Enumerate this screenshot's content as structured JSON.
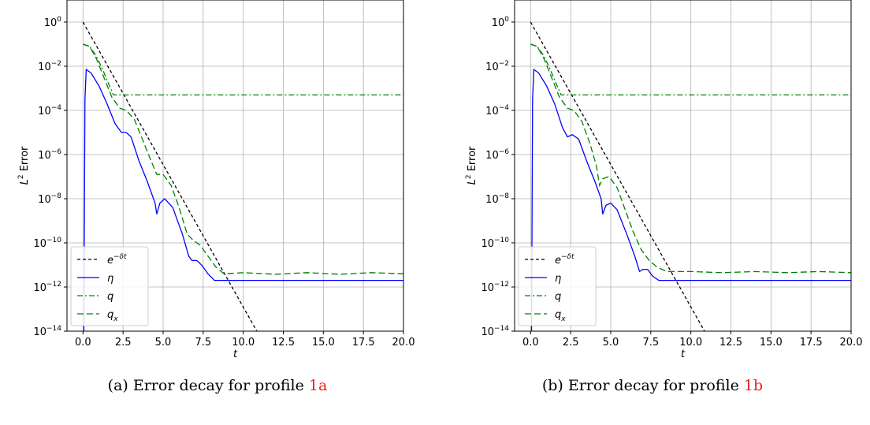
{
  "charts": [
    {
      "type": "line",
      "yscale": "log",
      "xlabel": "t",
      "ylabel_base": "L",
      "ylabel_sup": "2",
      "ylabel_rest": " Error",
      "xlim": [
        -1,
        20
      ],
      "ylim_exp": [
        -14,
        1
      ],
      "xticks": [
        "0.0",
        "2.5",
        "5.0",
        "7.5",
        "10.0",
        "12.5",
        "15.0",
        "17.5",
        "20.0"
      ],
      "xtick_values": [
        0,
        2.5,
        5,
        7.5,
        10,
        12.5,
        15,
        17.5,
        20
      ],
      "yticks": [
        {
          "base": "10",
          "exp": "0",
          "value": 0
        },
        {
          "base": "10",
          "exp": "−2",
          "value": -2
        },
        {
          "base": "10",
          "exp": "−4",
          "value": -4
        },
        {
          "base": "10",
          "exp": "−6",
          "value": -6
        },
        {
          "base": "10",
          "exp": "−8",
          "value": -8
        },
        {
          "base": "10",
          "exp": "−10",
          "value": -10
        },
        {
          "base": "10",
          "exp": "−12",
          "value": -12
        },
        {
          "base": "10",
          "exp": "−14",
          "value": -14
        }
      ],
      "grid": true,
      "legend_position": "lower-left",
      "series": [
        {
          "label_base": "e",
          "label_sup": "−δt",
          "color": "#000000",
          "dash": "4,3",
          "points": [
            [
              0,
              0
            ],
            [
              10.85,
              -14
            ]
          ]
        },
        {
          "label_base": "η",
          "label_sup": "",
          "color": "#0000ff",
          "dash": "",
          "points": [
            [
              0.05,
              -15
            ],
            [
              0.12,
              -3.5
            ],
            [
              0.2,
              -2.15
            ],
            [
              0.5,
              -2.3
            ],
            [
              1.0,
              -2.9
            ],
            [
              1.5,
              -3.7
            ],
            [
              2.0,
              -4.6
            ],
            [
              2.4,
              -5.0
            ],
            [
              2.7,
              -5.0
            ],
            [
              3.0,
              -5.2
            ],
            [
              3.5,
              -6.3
            ],
            [
              4.0,
              -7.2
            ],
            [
              4.5,
              -8.2
            ],
            [
              4.6,
              -8.7
            ],
            [
              4.8,
              -8.2
            ],
            [
              5.1,
              -8.0
            ],
            [
              5.6,
              -8.4
            ],
            [
              6.2,
              -9.6
            ],
            [
              6.6,
              -10.6
            ],
            [
              6.8,
              -10.8
            ],
            [
              7.1,
              -10.8
            ],
            [
              7.4,
              -11.0
            ],
            [
              7.8,
              -11.4
            ],
            [
              8.2,
              -11.7
            ],
            [
              9.0,
              -11.7
            ],
            [
              20,
              -11.7
            ]
          ]
        },
        {
          "label_base": "q",
          "label_sup": "",
          "color": "#008000",
          "dash": "7,3,2,3",
          "points": [
            [
              0,
              -1.0
            ],
            [
              0.4,
              -1.1
            ],
            [
              0.8,
              -1.5
            ],
            [
              1.2,
              -2.1
            ],
            [
              1.6,
              -2.8
            ],
            [
              1.9,
              -3.3
            ],
            [
              20,
              -3.3
            ]
          ]
        },
        {
          "label_base": "q",
          "label_sub": "x",
          "color": "#008000",
          "dash": "8,4",
          "points": [
            [
              0,
              -1.0
            ],
            [
              0.4,
              -1.1
            ],
            [
              0.8,
              -1.6
            ],
            [
              1.3,
              -2.5
            ],
            [
              1.8,
              -3.4
            ],
            [
              2.3,
              -3.9
            ],
            [
              2.7,
              -4.0
            ],
            [
              3.2,
              -4.4
            ],
            [
              3.7,
              -5.3
            ],
            [
              4.2,
              -6.2
            ],
            [
              4.6,
              -6.9
            ],
            [
              5.0,
              -6.9
            ],
            [
              5.5,
              -7.4
            ],
            [
              6.0,
              -8.4
            ],
            [
              6.5,
              -9.6
            ],
            [
              6.9,
              -9.9
            ],
            [
              7.3,
              -10.1
            ],
            [
              7.8,
              -10.6
            ],
            [
              8.3,
              -11.1
            ],
            [
              8.8,
              -11.4
            ],
            [
              10,
              -11.35
            ],
            [
              12,
              -11.42
            ],
            [
              14,
              -11.35
            ],
            [
              16,
              -11.42
            ],
            [
              18,
              -11.35
            ],
            [
              20,
              -11.4
            ]
          ]
        }
      ]
    },
    {
      "type": "line",
      "yscale": "log",
      "xlabel": "t",
      "ylabel_base": "L",
      "ylabel_sup": "2",
      "ylabel_rest": " Error",
      "xlim": [
        -1,
        20
      ],
      "ylim_exp": [
        -14,
        1
      ],
      "xticks": [
        "0.0",
        "2.5",
        "5.0",
        "7.5",
        "10.0",
        "12.5",
        "15.0",
        "17.5",
        "20.0"
      ],
      "xtick_values": [
        0,
        2.5,
        5,
        7.5,
        10,
        12.5,
        15,
        17.5,
        20
      ],
      "yticks": [
        {
          "base": "10",
          "exp": "0",
          "value": 0
        },
        {
          "base": "10",
          "exp": "−2",
          "value": -2
        },
        {
          "base": "10",
          "exp": "−4",
          "value": -4
        },
        {
          "base": "10",
          "exp": "−6",
          "value": -6
        },
        {
          "base": "10",
          "exp": "−8",
          "value": -8
        },
        {
          "base": "10",
          "exp": "−10",
          "value": -10
        },
        {
          "base": "10",
          "exp": "−12",
          "value": -12
        },
        {
          "base": "10",
          "exp": "−14",
          "value": -14
        }
      ],
      "grid": true,
      "legend_position": "lower-left",
      "series": [
        {
          "label_base": "e",
          "label_sup": "−δt",
          "color": "#000000",
          "dash": "4,3",
          "points": [
            [
              0,
              0
            ],
            [
              10.85,
              -14
            ]
          ]
        },
        {
          "label_base": "η",
          "label_sup": "",
          "color": "#0000ff",
          "dash": "",
          "points": [
            [
              0.05,
              -15
            ],
            [
              0.12,
              -3.5
            ],
            [
              0.2,
              -2.15
            ],
            [
              0.5,
              -2.3
            ],
            [
              1.0,
              -2.9
            ],
            [
              1.5,
              -3.7
            ],
            [
              2.0,
              -4.8
            ],
            [
              2.3,
              -5.2
            ],
            [
              2.6,
              -5.1
            ],
            [
              3.0,
              -5.3
            ],
            [
              3.5,
              -6.3
            ],
            [
              4.0,
              -7.2
            ],
            [
              4.4,
              -8.0
            ],
            [
              4.5,
              -8.7
            ],
            [
              4.7,
              -8.3
            ],
            [
              5.0,
              -8.2
            ],
            [
              5.4,
              -8.5
            ],
            [
              6.0,
              -9.6
            ],
            [
              6.5,
              -10.6
            ],
            [
              6.8,
              -11.3
            ],
            [
              7.0,
              -11.2
            ],
            [
              7.3,
              -11.2
            ],
            [
              7.6,
              -11.5
            ],
            [
              8.0,
              -11.7
            ],
            [
              9.0,
              -11.7
            ],
            [
              20,
              -11.7
            ]
          ]
        },
        {
          "label_base": "q",
          "label_sup": "",
          "color": "#008000",
          "dash": "7,3,2,3",
          "points": [
            [
              0,
              -1.0
            ],
            [
              0.4,
              -1.1
            ],
            [
              0.8,
              -1.5
            ],
            [
              1.2,
              -2.1
            ],
            [
              1.6,
              -2.8
            ],
            [
              1.9,
              -3.3
            ],
            [
              20,
              -3.3
            ]
          ]
        },
        {
          "label_base": "q",
          "label_sub": "x",
          "color": "#008000",
          "dash": "8,4",
          "points": [
            [
              0,
              -1.0
            ],
            [
              0.4,
              -1.1
            ],
            [
              0.8,
              -1.6
            ],
            [
              1.3,
              -2.5
            ],
            [
              1.8,
              -3.4
            ],
            [
              2.3,
              -3.9
            ],
            [
              2.7,
              -4.0
            ],
            [
              3.2,
              -4.5
            ],
            [
              3.7,
              -5.5
            ],
            [
              4.1,
              -6.5
            ],
            [
              4.3,
              -7.4
            ],
            [
              4.5,
              -7.1
            ],
            [
              4.9,
              -7.0
            ],
            [
              5.4,
              -7.5
            ],
            [
              5.9,
              -8.5
            ],
            [
              6.4,
              -9.5
            ],
            [
              6.9,
              -10.3
            ],
            [
              7.4,
              -10.8
            ],
            [
              7.9,
              -11.1
            ],
            [
              8.5,
              -11.3
            ],
            [
              10,
              -11.3
            ],
            [
              12,
              -11.35
            ],
            [
              14,
              -11.3
            ],
            [
              16,
              -11.35
            ],
            [
              18,
              -11.3
            ],
            [
              20,
              -11.35
            ]
          ]
        }
      ]
    }
  ],
  "captions": [
    {
      "prefix": "(a) Error decay for profile ",
      "ref": "1a"
    },
    {
      "prefix": "(b) Error decay for profile ",
      "ref": "1b"
    }
  ]
}
